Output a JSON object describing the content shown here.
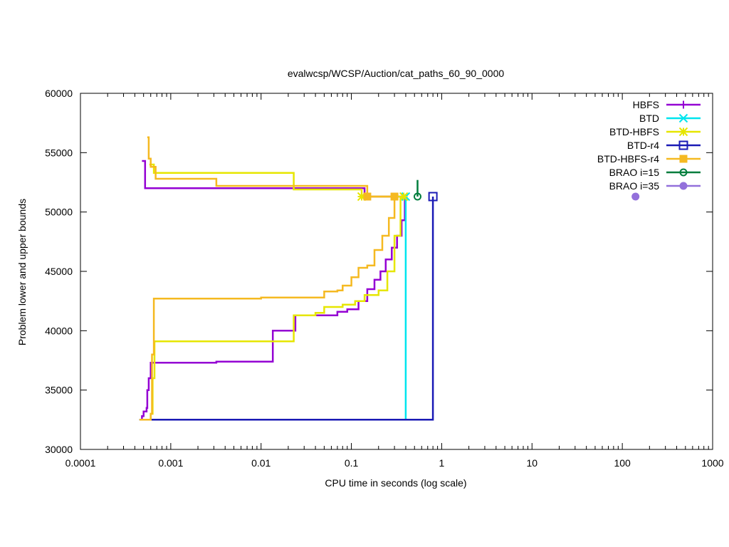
{
  "chart_data": {
    "type": "line",
    "title": "evalwcsp/WCSP/Auction/cat_paths_60_90_0000",
    "xlabel": "CPU time in seconds (log scale)",
    "ylabel": "Problem lower and upper bounds",
    "xscale": "log",
    "xlim": [
      0.0001,
      1000
    ],
    "ylim": [
      30000,
      60000
    ],
    "xticks": [
      {
        "value": 0.0001,
        "label": "0.0001"
      },
      {
        "value": 0.001,
        "label": "0.001"
      },
      {
        "value": 0.01,
        "label": "0.01"
      },
      {
        "value": 0.1,
        "label": "0.1"
      },
      {
        "value": 1,
        "label": "1"
      },
      {
        "value": 10,
        "label": "10"
      },
      {
        "value": 100,
        "label": "100"
      },
      {
        "value": 1000,
        "label": "1000"
      }
    ],
    "yticks": [
      {
        "value": 30000,
        "label": "30000"
      },
      {
        "value": 35000,
        "label": "35000"
      },
      {
        "value": 40000,
        "label": "40000"
      },
      {
        "value": 45000,
        "label": "45000"
      },
      {
        "value": 50000,
        "label": "50000"
      },
      {
        "value": 55000,
        "label": "55000"
      },
      {
        "value": 60000,
        "label": "60000"
      }
    ],
    "legend_position": "top-right",
    "grid": false,
    "series": [
      {
        "name": "HBFS",
        "color": "#9400d3",
        "marker": "plus",
        "upper": [
          [
            0.00048,
            54300
          ],
          [
            0.00052,
            54300
          ],
          [
            0.00052,
            52000
          ],
          [
            0.1,
            52000
          ],
          [
            0.14,
            52000
          ],
          [
            0.14,
            51300
          ],
          [
            0.4,
            51300
          ]
        ],
        "lower": [
          [
            0.00045,
            32500
          ],
          [
            0.00048,
            32800
          ],
          [
            0.0005,
            33200
          ],
          [
            0.00054,
            33500
          ],
          [
            0.00055,
            35000
          ],
          [
            0.00057,
            36000
          ],
          [
            0.0006,
            37300
          ],
          [
            0.0032,
            37300
          ],
          [
            0.0032,
            37400
          ],
          [
            0.0135,
            37400
          ],
          [
            0.0135,
            40000
          ],
          [
            0.024,
            40000
          ],
          [
            0.024,
            41300
          ],
          [
            0.06,
            41300
          ],
          [
            0.07,
            41600
          ],
          [
            0.09,
            41800
          ],
          [
            0.12,
            42500
          ],
          [
            0.15,
            43500
          ],
          [
            0.18,
            44300
          ],
          [
            0.21,
            45000
          ],
          [
            0.24,
            46000
          ],
          [
            0.28,
            47000
          ],
          [
            0.32,
            48000
          ],
          [
            0.36,
            49300
          ],
          [
            0.39,
            51300
          ]
        ],
        "markers": [
          [
            0.14,
            51300
          ]
        ]
      },
      {
        "name": "BTD",
        "color": "#00e5ee",
        "marker": "x",
        "upper": [
          [
            0.4,
            51300
          ]
        ],
        "lower": [
          [
            0.00045,
            32500
          ],
          [
            0.4,
            32500
          ],
          [
            0.4,
            51300
          ]
        ],
        "markers": [
          [
            0.4,
            51300
          ]
        ]
      },
      {
        "name": "BTD-HBFS",
        "color": "#e6e600",
        "marker": "star",
        "upper": [
          [
            0.00058,
            54000
          ],
          [
            0.00065,
            53300
          ],
          [
            0.023,
            53300
          ],
          [
            0.023,
            51900
          ],
          [
            0.13,
            51900
          ],
          [
            0.13,
            51300
          ],
          [
            0.38,
            51300
          ]
        ],
        "lower": [
          [
            0.00055,
            32500
          ],
          [
            0.0006,
            33000
          ],
          [
            0.00063,
            36000
          ],
          [
            0.00066,
            39100
          ],
          [
            0.023,
            39100
          ],
          [
            0.023,
            41300
          ],
          [
            0.03,
            41300
          ],
          [
            0.04,
            41500
          ],
          [
            0.05,
            42000
          ],
          [
            0.08,
            42200
          ],
          [
            0.11,
            42500
          ],
          [
            0.14,
            43000
          ],
          [
            0.2,
            43400
          ],
          [
            0.25,
            45000
          ],
          [
            0.3,
            48000
          ],
          [
            0.35,
            51300
          ]
        ],
        "markers": [
          [
            0.13,
            51300
          ],
          [
            0.38,
            51300
          ]
        ]
      },
      {
        "name": "BTD-r4",
        "color": "#1a1ab5",
        "marker": "square",
        "upper": [
          [
            0.8,
            51300
          ]
        ],
        "lower": [
          [
            0.00045,
            32500
          ],
          [
            0.8,
            32500
          ],
          [
            0.8,
            51300
          ]
        ],
        "markers": [
          [
            0.8,
            51300
          ]
        ]
      },
      {
        "name": "BTD-HBFS-r4",
        "color": "#f5b921",
        "marker": "filled-square",
        "upper": [
          [
            0.00055,
            56300
          ],
          [
            0.00057,
            54500
          ],
          [
            0.0006,
            53800
          ],
          [
            0.00068,
            52800
          ],
          [
            0.0032,
            52800
          ],
          [
            0.0032,
            52200
          ],
          [
            0.12,
            52200
          ],
          [
            0.15,
            51900
          ],
          [
            0.15,
            51300
          ],
          [
            0.3,
            51300
          ]
        ],
        "lower": [
          [
            0.00045,
            32500
          ],
          [
            0.00056,
            32500
          ],
          [
            0.0006,
            33000
          ],
          [
            0.00062,
            38000
          ],
          [
            0.00065,
            42700
          ],
          [
            0.01,
            42800
          ],
          [
            0.05,
            42800
          ],
          [
            0.05,
            43300
          ],
          [
            0.07,
            43400
          ],
          [
            0.08,
            43800
          ],
          [
            0.1,
            44500
          ],
          [
            0.12,
            45300
          ],
          [
            0.15,
            45500
          ],
          [
            0.18,
            46800
          ],
          [
            0.22,
            48000
          ],
          [
            0.26,
            49500
          ],
          [
            0.3,
            51300
          ]
        ],
        "markers": [
          [
            0.15,
            51300
          ],
          [
            0.3,
            51300
          ]
        ]
      },
      {
        "name": "BRAO i=15",
        "color": "#007d3c",
        "marker": "circle",
        "upper": [
          [
            0.54,
            51300
          ]
        ],
        "lower": [
          [
            0.54,
            52700
          ],
          [
            0.54,
            51300
          ]
        ],
        "markers": [
          [
            0.54,
            51300
          ]
        ]
      },
      {
        "name": "BRAO i=35",
        "color": "#9370db",
        "marker": "filled-circle",
        "upper": [],
        "lower": [],
        "markers": [
          [
            140,
            51300
          ]
        ]
      }
    ]
  }
}
